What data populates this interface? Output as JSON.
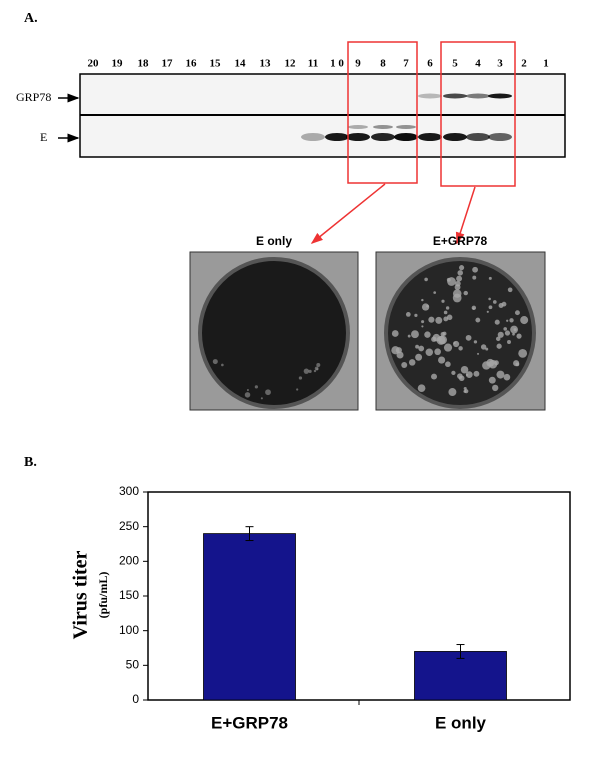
{
  "panel_a": {
    "label": "A.",
    "lanes": [
      "20",
      "19",
      "18",
      "17",
      "16",
      "15",
      "14",
      "13",
      "12",
      "11",
      "1 0",
      "9",
      "8",
      "7",
      "6",
      "5",
      "4",
      "3",
      "2",
      "1"
    ],
    "rows": [
      "GRP78",
      "E"
    ],
    "plaques": [
      "E only",
      "E+GRP78"
    ]
  },
  "panel_b": {
    "label": "B."
  },
  "chart_data": {
    "type": "bar",
    "ylabel": "Virus titer",
    "yunit": "(pfu/mL)",
    "categories": [
      "E+GRP78",
      "E only"
    ],
    "values": [
      240,
      70
    ],
    "errors": [
      10,
      10
    ],
    "color": "#14148c",
    "ylim": [
      0,
      300
    ],
    "yticks": [
      0,
      50,
      100,
      150,
      200,
      250,
      300
    ]
  }
}
